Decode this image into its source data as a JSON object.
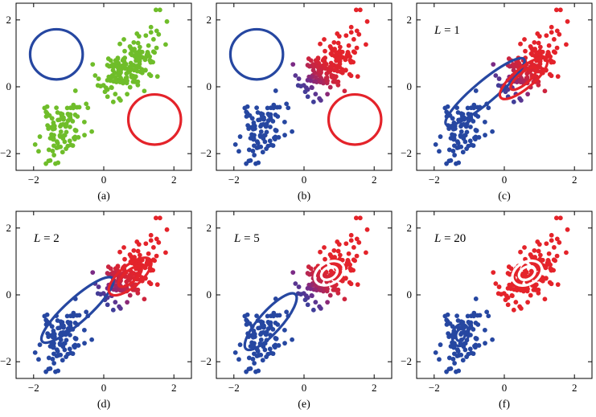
{
  "colors": {
    "green": "#6fbd2a",
    "blue": "#2647a1",
    "red": "#e4232a",
    "purple": "#7a2a86",
    "white": "#ffffff",
    "axis": "#000000"
  },
  "chart_data": [
    {
      "type": "scatter",
      "caption": "(a)",
      "annotation": null,
      "xlim": [
        -2.5,
        2.5
      ],
      "ylim": [
        -2.5,
        2.5
      ],
      "xticks": [
        -2,
        0,
        2
      ],
      "yticks": [
        -2,
        0,
        2
      ],
      "xticklabels": [
        "−2",
        "0",
        "2"
      ],
      "yticklabels": [
        "−2",
        "0",
        "2"
      ],
      "point_coloring": "green",
      "seed": 11,
      "ellipses": [
        {
          "color": "blue",
          "cx": -1.35,
          "cy": 0.97,
          "rx": 0.75,
          "ry": 0.75,
          "angle": 0,
          "rings": 1
        },
        {
          "color": "red",
          "cx": 1.45,
          "cy": -0.98,
          "rx": 0.75,
          "ry": 0.75,
          "angle": 0,
          "rings": 1
        }
      ]
    },
    {
      "type": "scatter",
      "caption": "(b)",
      "annotation": null,
      "xlim": [
        -2.5,
        2.5
      ],
      "ylim": [
        -2.5,
        2.5
      ],
      "xticks": [
        -2,
        0,
        2
      ],
      "yticks": [
        -2,
        0,
        2
      ],
      "xticklabels": [
        "−2",
        "0",
        "2"
      ],
      "yticklabels": [
        "−2",
        "0",
        "2"
      ],
      "point_coloring": "responsibility",
      "seed": 11,
      "ellipses": [
        {
          "color": "blue",
          "cx": -1.35,
          "cy": 0.97,
          "rx": 0.75,
          "ry": 0.75,
          "angle": 0,
          "rings": 1
        },
        {
          "color": "red",
          "cx": 1.45,
          "cy": -0.98,
          "rx": 0.75,
          "ry": 0.75,
          "angle": 0,
          "rings": 1
        }
      ]
    },
    {
      "type": "scatter",
      "caption": "(c)",
      "annotation": {
        "var": "L",
        "value": "1"
      },
      "xlim": [
        -2.5,
        2.5
      ],
      "ylim": [
        -2.5,
        2.5
      ],
      "xticks": [
        -2,
        0,
        2
      ],
      "yticks": [
        -2,
        0,
        2
      ],
      "xticklabels": [
        "−2",
        "0",
        "2"
      ],
      "yticklabels": [
        "−2",
        "0",
        "2"
      ],
      "point_coloring": "responsibility",
      "seed": 11,
      "ellipses": [
        {
          "color": "blue",
          "cx": -0.55,
          "cy": -0.15,
          "rx": 1.45,
          "ry": 0.32,
          "angle": 40,
          "rings": 1
        },
        {
          "color": "red",
          "cx": 0.55,
          "cy": 0.25,
          "rx": 0.85,
          "ry": 0.3,
          "angle": 40,
          "rings": 2
        }
      ]
    },
    {
      "type": "scatter",
      "caption": "(d)",
      "annotation": {
        "var": "L",
        "value": "2"
      },
      "xlim": [
        -2.5,
        2.5
      ],
      "ylim": [
        -2.5,
        2.5
      ],
      "xticks": [
        -2,
        0,
        2
      ],
      "yticks": [
        -2,
        0,
        2
      ],
      "xticklabels": [
        "−2",
        "0",
        "2"
      ],
      "yticklabels": [
        "−2",
        "0",
        "2"
      ],
      "point_coloring": "responsibility",
      "seed": 11,
      "ellipses": [
        {
          "color": "blue",
          "cx": -0.75,
          "cy": -0.45,
          "rx": 1.35,
          "ry": 0.35,
          "angle": 42,
          "rings": 1
        },
        {
          "color": "red",
          "cx": 0.75,
          "cy": 0.55,
          "rx": 0.75,
          "ry": 0.32,
          "angle": 40,
          "rings": 2
        }
      ]
    },
    {
      "type": "scatter",
      "caption": "(e)",
      "annotation": {
        "var": "L",
        "value": "5"
      },
      "xlim": [
        -2.5,
        2.5
      ],
      "ylim": [
        -2.5,
        2.5
      ],
      "xticks": [
        -2,
        0,
        2
      ],
      "yticks": [
        -2,
        0,
        2
      ],
      "xticklabels": [
        "−2",
        "0",
        "2"
      ],
      "yticklabels": [
        "−2",
        "0",
        "2"
      ],
      "point_coloring": "responsibility",
      "seed": 11,
      "ellipses": [
        {
          "color": "blue",
          "cx": -0.95,
          "cy": -0.8,
          "rx": 1.05,
          "ry": 0.33,
          "angle": 48,
          "rings": 1
        },
        {
          "color": "white",
          "cx": 0.72,
          "cy": 0.65,
          "rx": 0.45,
          "ry": 0.32,
          "angle": 30,
          "rings": 2
        }
      ]
    },
    {
      "type": "scatter",
      "caption": "(f)",
      "annotation": {
        "var": "L",
        "value": "20"
      },
      "xlim": [
        -2.5,
        2.5
      ],
      "ylim": [
        -2.5,
        2.5
      ],
      "xticks": [
        -2,
        0,
        2
      ],
      "yticks": [
        -2,
        0,
        2
      ],
      "xticklabels": [
        "−2",
        "0",
        "2"
      ],
      "yticklabels": [
        "−2",
        "0",
        "2"
      ],
      "point_coloring": "final",
      "seed": 11,
      "ellipses": [
        {
          "color": "blue",
          "cx": -1.25,
          "cy": -1.2,
          "rx": 0.32,
          "ry": 0.24,
          "angle": 75,
          "rings": 2
        },
        {
          "color": "white",
          "cx": 0.65,
          "cy": 0.65,
          "rx": 0.45,
          "ry": 0.33,
          "angle": 30,
          "rings": 2
        }
      ]
    }
  ]
}
